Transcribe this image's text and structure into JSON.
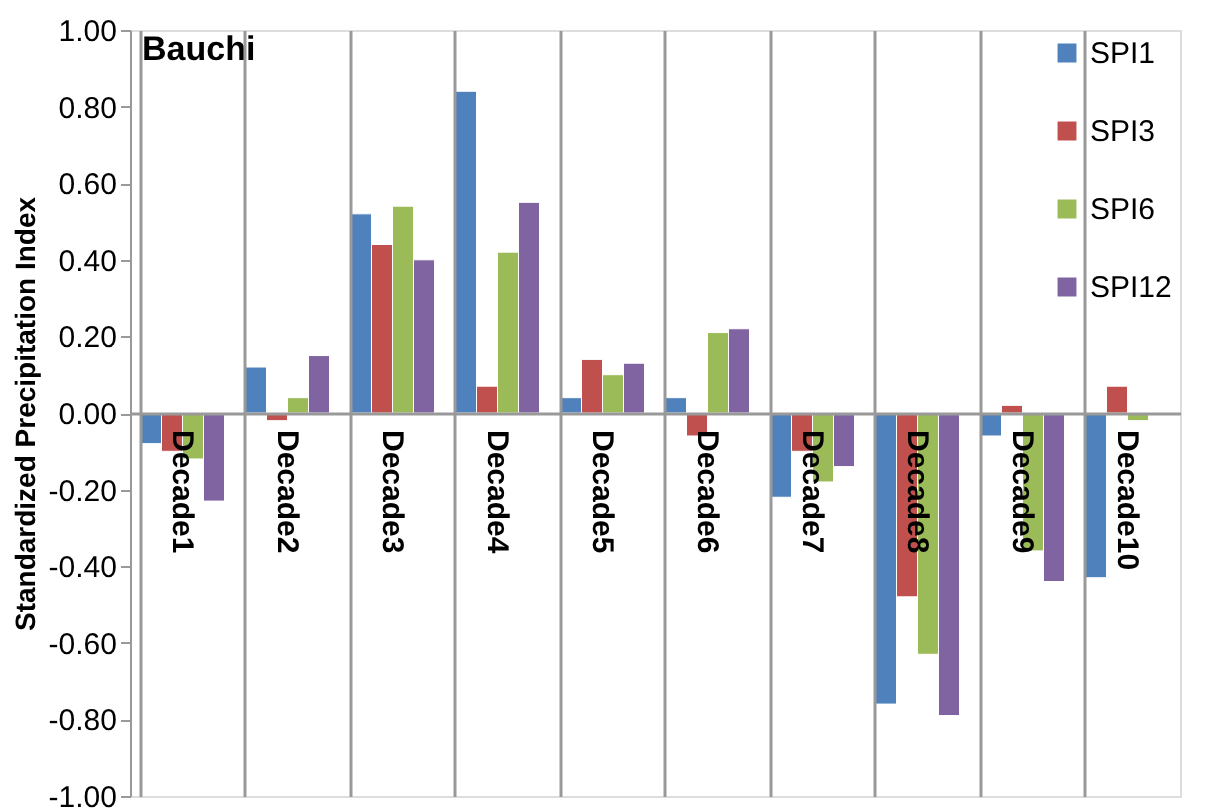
{
  "chart_data": {
    "type": "bar",
    "title": "Bauchi",
    "ylabel": "Standardized Precipitation Index",
    "categories": [
      "Decade1",
      "Decade2",
      "Decade3",
      "Decade4",
      "Decade5",
      "Decade6",
      "Decade7",
      "Decade8",
      "Decade9",
      "Decade10"
    ],
    "series": [
      {
        "name": "SPI1",
        "color": "#4f81bd",
        "values": [
          -0.08,
          0.12,
          0.52,
          0.84,
          0.04,
          0.04,
          -0.22,
          -0.76,
          -0.06,
          -0.43
        ]
      },
      {
        "name": "SPI3",
        "color": "#c0504d",
        "values": [
          -0.1,
          -0.02,
          0.44,
          0.07,
          0.14,
          -0.06,
          -0.1,
          -0.48,
          0.02,
          0.07
        ]
      },
      {
        "name": "SPI6",
        "color": "#9bbb59",
        "values": [
          -0.12,
          0.04,
          0.54,
          0.42,
          0.1,
          0.21,
          -0.18,
          -0.63,
          -0.36,
          -0.02
        ]
      },
      {
        "name": "SPI12",
        "color": "#8064a2",
        "values": [
          -0.23,
          0.15,
          0.4,
          0.55,
          0.13,
          0.22,
          -0.14,
          -0.79,
          -0.44,
          null
        ]
      }
    ],
    "ylim": [
      -1.0,
      1.0
    ],
    "yticks": [
      {
        "value": -1.0,
        "label": "-1.00"
      },
      {
        "value": -0.8,
        "label": "-0.80"
      },
      {
        "value": -0.6,
        "label": "-0.60"
      },
      {
        "value": -0.4,
        "label": "-0.40"
      },
      {
        "value": -0.2,
        "label": "-0.20"
      },
      {
        "value": 0,
        "label": "0.00"
      },
      {
        "value": 0.2,
        "label": "0.20"
      },
      {
        "value": 0.4,
        "label": "0.40"
      },
      {
        "value": 0.6,
        "label": "0.60"
      },
      {
        "value": 0.8,
        "label": "0.80"
      },
      {
        "value": 1.0,
        "label": "1.00"
      }
    ],
    "grid": "x",
    "legend": "top right"
  }
}
